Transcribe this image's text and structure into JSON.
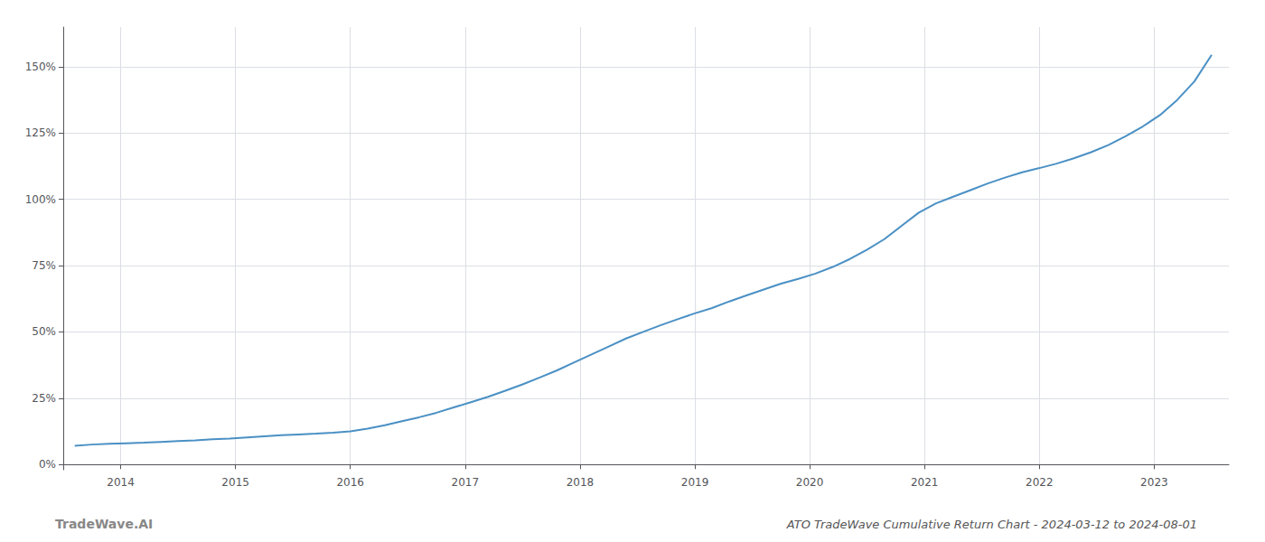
{
  "chart_data": {
    "type": "line",
    "title": "ATO TradeWave Cumulative Return Chart - 2024-03-12 to 2024-08-01",
    "annotations": [
      "TradeWave.AI"
    ],
    "color": "#4a90c4",
    "x": [
      2013.6,
      2013.75,
      2013.9,
      2014.05,
      2014.2,
      2014.35,
      2014.5,
      2014.65,
      2014.8,
      2014.95,
      2015.1,
      2015.25,
      2015.4,
      2015.55,
      2015.7,
      2015.85,
      2016.0,
      2016.15,
      2016.3,
      2016.45,
      2016.6,
      2016.75,
      2016.9,
      2017.05,
      2017.2,
      2017.35,
      2017.5,
      2017.65,
      2017.8,
      2017.95,
      2018.1,
      2018.25,
      2018.4,
      2018.55,
      2018.7,
      2018.85,
      2019.0,
      2019.15,
      2019.3,
      2019.45,
      2019.6,
      2019.75,
      2019.9,
      2020.05,
      2020.2,
      2020.35,
      2020.5,
      2020.65,
      2020.8,
      2020.95,
      2021.1,
      2021.25,
      2021.4,
      2021.55,
      2021.7,
      2021.85,
      2022.0,
      2022.15,
      2022.3,
      2022.45,
      2022.6,
      2022.75,
      2022.9,
      2023.05,
      2023.2,
      2023.35,
      2023.5
    ],
    "values": [
      0.07,
      0.075,
      0.078,
      0.08,
      0.082,
      0.085,
      0.088,
      0.091,
      0.095,
      0.098,
      0.102,
      0.106,
      0.11,
      0.113,
      0.116,
      0.12,
      0.125,
      0.135,
      0.148,
      0.163,
      0.178,
      0.195,
      0.215,
      0.235,
      0.255,
      0.278,
      0.302,
      0.328,
      0.355,
      0.385,
      0.415,
      0.445,
      0.475,
      0.5,
      0.525,
      0.548,
      0.57,
      0.59,
      0.615,
      0.638,
      0.66,
      0.682,
      0.7,
      0.72,
      0.745,
      0.775,
      0.81,
      0.85,
      0.9,
      0.95,
      0.985,
      1.01,
      1.035,
      1.06,
      1.082,
      1.102,
      1.118,
      1.135,
      1.155,
      1.178,
      1.205,
      1.238,
      1.275,
      1.318,
      1.375,
      1.445,
      1.545
    ],
    "xlim": [
      2013.5,
      2023.65
    ],
    "xticks": [
      2014,
      2015,
      2016,
      2017,
      2018,
      2019,
      2020,
      2021,
      2022,
      2023
    ],
    "ylim": [
      -0.02,
      1.65
    ],
    "yticks": [
      {
        "value": 0.0,
        "label": "0%"
      },
      {
        "value": 0.25,
        "label": "25%"
      },
      {
        "value": 0.5,
        "label": "50%"
      },
      {
        "value": 0.75,
        "label": "75%"
      },
      {
        "value": 1.0,
        "label": "100%"
      },
      {
        "value": 1.25,
        "label": "125%"
      },
      {
        "value": 1.5,
        "label": "150%"
      }
    ],
    "grid": true
  }
}
